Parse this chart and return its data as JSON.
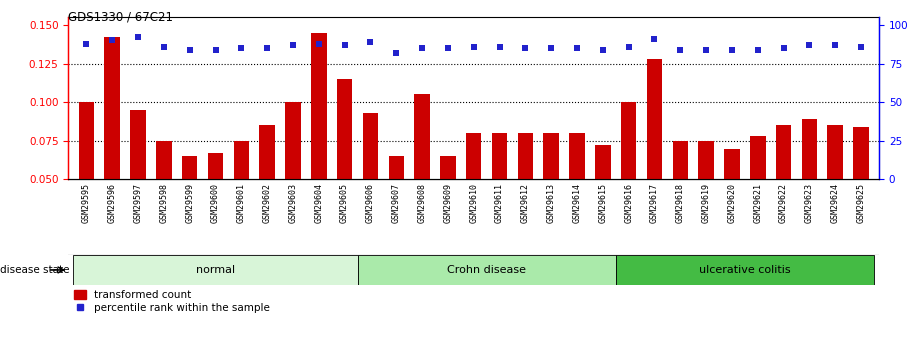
{
  "title": "GDS1330 / 67C21",
  "samples": [
    "GSM29595",
    "GSM29596",
    "GSM29597",
    "GSM29598",
    "GSM29599",
    "GSM29600",
    "GSM29601",
    "GSM29602",
    "GSM29603",
    "GSM29604",
    "GSM29605",
    "GSM29606",
    "GSM29607",
    "GSM29608",
    "GSM29609",
    "GSM29610",
    "GSM29611",
    "GSM29612",
    "GSM29613",
    "GSM29614",
    "GSM29615",
    "GSM29616",
    "GSM29617",
    "GSM29618",
    "GSM29619",
    "GSM29620",
    "GSM29621",
    "GSM29622",
    "GSM29623",
    "GSM29624",
    "GSM29625"
  ],
  "bar_values": [
    0.1,
    0.142,
    0.095,
    0.075,
    0.065,
    0.067,
    0.075,
    0.085,
    0.1,
    0.145,
    0.115,
    0.093,
    0.065,
    0.105,
    0.065,
    0.08,
    0.08,
    0.08,
    0.08,
    0.08,
    0.072,
    0.1,
    0.128,
    0.075,
    0.075,
    0.07,
    0.078,
    0.085,
    0.089,
    0.085,
    0.084
  ],
  "percentile_values": [
    88,
    90,
    92,
    86,
    84,
    84,
    85,
    85,
    87,
    88,
    87,
    89,
    82,
    85,
    85,
    86,
    86,
    85,
    85,
    85,
    84,
    86,
    91,
    84,
    84,
    84,
    84,
    85,
    87,
    87,
    86
  ],
  "ylim_left": [
    0.05,
    0.155
  ],
  "ylim_right": [
    0,
    105
  ],
  "yticks_left": [
    0.05,
    0.075,
    0.1,
    0.125,
    0.15
  ],
  "yticks_right": [
    0,
    25,
    50,
    75,
    100
  ],
  "bar_color": "#cc0000",
  "dot_color": "#2222cc",
  "groups": [
    {
      "label": "normal",
      "start": 0,
      "end": 10,
      "color": "#d8f5d8"
    },
    {
      "label": "Crohn disease",
      "start": 11,
      "end": 20,
      "color": "#aaeaaa"
    },
    {
      "label": "ulcerative colitis",
      "start": 21,
      "end": 30,
      "color": "#44bb44"
    }
  ],
  "disease_state_label": "disease state",
  "legend_bar_label": "transformed count",
  "legend_dot_label": "percentile rank within the sample",
  "xticklabel_bg": "#dddddd",
  "plot_bg": "#ffffff"
}
